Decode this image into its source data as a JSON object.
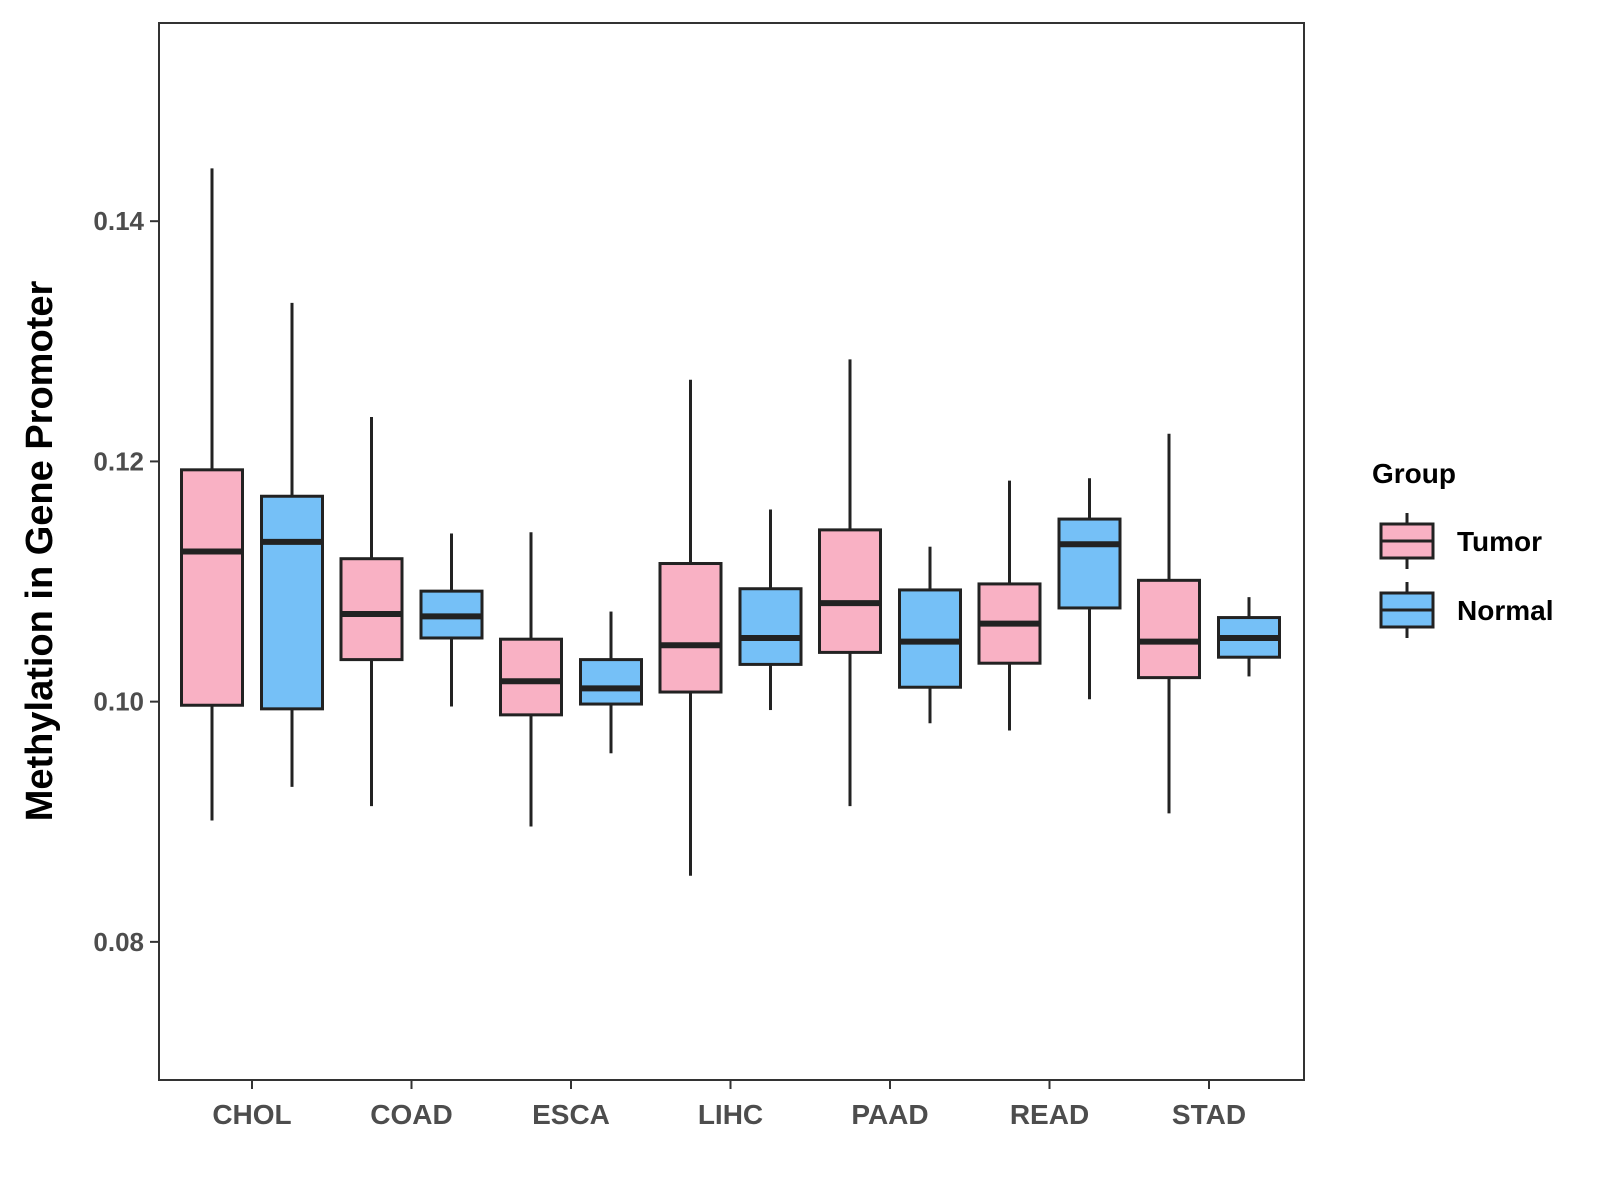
{
  "chart_data": {
    "type": "boxplot",
    "title": "",
    "xlabel": "",
    "ylabel": "Methylation in Gene Promoter",
    "ylim": [
      0.0685,
      0.1565
    ],
    "yticks": [
      0.08,
      0.1,
      0.12,
      0.14
    ],
    "ytick_labels": [
      "0.08",
      "0.10",
      "0.12",
      "0.14"
    ],
    "categories": [
      "CHOL",
      "COAD",
      "ESCA",
      "LIHC",
      "PAAD",
      "READ",
      "STAD"
    ],
    "grid": false,
    "legend": {
      "title": "Group",
      "position": "right",
      "entries": [
        {
          "name": "Tumor",
          "color": "#F9B1C4"
        },
        {
          "name": "Normal",
          "color": "#75C0F7"
        }
      ]
    },
    "series": [
      {
        "name": "Tumor",
        "color": "#F9B1C4",
        "boxes": [
          {
            "category": "CHOL",
            "min": 0.0901,
            "q1": 0.0997,
            "median": 0.1125,
            "q3": 0.1193,
            "max": 0.1444
          },
          {
            "category": "COAD",
            "min": 0.0913,
            "q1": 0.1035,
            "median": 0.1073,
            "q3": 0.1119,
            "max": 0.1237
          },
          {
            "category": "ESCA",
            "min": 0.0896,
            "q1": 0.0989,
            "median": 0.1017,
            "q3": 0.1052,
            "max": 0.1141
          },
          {
            "category": "LIHC",
            "min": 0.0855,
            "q1": 0.1008,
            "median": 0.1047,
            "q3": 0.1115,
            "max": 0.1268
          },
          {
            "category": "PAAD",
            "min": 0.0913,
            "q1": 0.1041,
            "median": 0.1082,
            "q3": 0.1143,
            "max": 0.1285
          },
          {
            "category": "READ",
            "min": 0.0976,
            "q1": 0.1032,
            "median": 0.1065,
            "q3": 0.1098,
            "max": 0.1184
          },
          {
            "category": "STAD",
            "min": 0.0907,
            "q1": 0.102,
            "median": 0.105,
            "q3": 0.1101,
            "max": 0.1223
          }
        ]
      },
      {
        "name": "Normal",
        "color": "#75C0F7",
        "boxes": [
          {
            "category": "CHOL",
            "min": 0.0929,
            "q1": 0.0994,
            "median": 0.1133,
            "q3": 0.1171,
            "max": 0.1332
          },
          {
            "category": "COAD",
            "min": 0.0996,
            "q1": 0.1053,
            "median": 0.1071,
            "q3": 0.1092,
            "max": 0.114
          },
          {
            "category": "ESCA",
            "min": 0.0957,
            "q1": 0.0998,
            "median": 0.1011,
            "q3": 0.1035,
            "max": 0.1075
          },
          {
            "category": "LIHC",
            "min": 0.0993,
            "q1": 0.1031,
            "median": 0.1053,
            "q3": 0.1094,
            "max": 0.116
          },
          {
            "category": "PAAD",
            "min": 0.0982,
            "q1": 0.1012,
            "median": 0.105,
            "q3": 0.1093,
            "max": 0.1129
          },
          {
            "category": "READ",
            "min": 0.1002,
            "q1": 0.1078,
            "median": 0.1131,
            "q3": 0.1152,
            "max": 0.1186
          },
          {
            "category": "STAD",
            "min": 0.1021,
            "q1": 0.1037,
            "median": 0.1053,
            "q3": 0.107,
            "max": 0.1087
          }
        ]
      }
    ]
  }
}
